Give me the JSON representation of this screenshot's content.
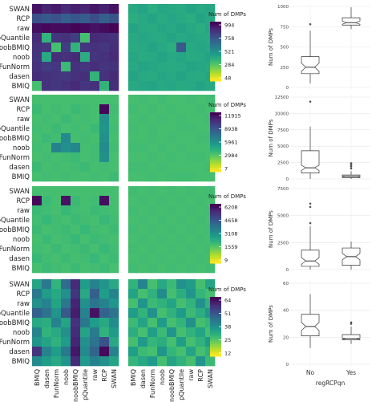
{
  "chart_data": {
    "type": "heatmap",
    "colorscale": [
      "#fde725",
      "#b5de2b",
      "#6ece58",
      "#35b779",
      "#1f9e89",
      "#26828e",
      "#31688e",
      "#3e4989",
      "#482878",
      "#440154"
    ],
    "methods_rows": [
      "SWAN",
      "RCP",
      "raw",
      "pQuantile",
      "noobBMIQ",
      "noob",
      "FunNorm",
      "dasen",
      "BMIQ"
    ],
    "methods_cols": [
      "BMIQ",
      "dasen",
      "FunNorm",
      "noob",
      "noobBMIQ",
      "pQuantile",
      "raw",
      "RCP",
      "SWAN"
    ],
    "legend_title": "Num of DMPs",
    "panels": [
      {
        "legend_ticks": [
          "994",
          "758",
          "521",
          "284",
          "48"
        ],
        "left": [
          [
            0.95,
            0.9,
            0.93,
            0.88,
            0.92,
            0.9,
            0.94,
            0.91,
            0.95
          ],
          [
            0.75,
            0.72,
            0.74,
            0.7,
            0.73,
            0.71,
            0.76,
            0.7,
            0.74
          ],
          [
            0.96,
            0.98,
            0.97,
            0.97,
            0.99,
            0.98,
            0.95,
            0.97,
            0.99
          ],
          [
            0.88,
            0.35,
            0.85,
            0.86,
            0.82,
            0.3,
            0.88,
            0.87,
            0.86
          ],
          [
            0.86,
            0.84,
            0.3,
            0.82,
            0.35,
            0.85,
            0.86,
            0.84,
            0.87
          ],
          [
            0.85,
            0.4,
            0.87,
            0.86,
            0.88,
            0.38,
            0.85,
            0.86,
            0.88
          ],
          [
            0.86,
            0.82,
            0.84,
            0.32,
            0.86,
            0.84,
            0.87,
            0.85,
            0.86
          ],
          [
            0.87,
            0.86,
            0.85,
            0.84,
            0.86,
            0.87,
            0.35,
            0.86,
            0.88
          ],
          [
            0.3,
            0.86,
            0.84,
            0.86,
            0.88,
            0.85,
            0.86,
            0.35,
            0.87
          ]
        ],
        "right": [
          [
            0.4,
            0.42,
            0.38,
            0.41,
            0.4,
            0.39,
            0.42,
            0.4,
            0.41
          ],
          [
            0.38,
            0.4,
            0.42,
            0.39,
            0.41,
            0.4,
            0.38,
            0.42,
            0.4
          ],
          [
            0.42,
            0.4,
            0.39,
            0.41,
            0.4,
            0.42,
            0.4,
            0.38,
            0.41
          ],
          [
            0.4,
            0.41,
            0.4,
            0.39,
            0.42,
            0.4,
            0.41,
            0.4,
            0.39
          ],
          [
            0.39,
            0.4,
            0.42,
            0.4,
            0.38,
            0.72,
            0.4,
            0.41,
            0.4
          ],
          [
            0.41,
            0.39,
            0.4,
            0.42,
            0.4,
            0.41,
            0.39,
            0.4,
            0.42
          ],
          [
            0.4,
            0.42,
            0.41,
            0.4,
            0.39,
            0.4,
            0.42,
            0.41,
            0.4
          ],
          [
            0.42,
            0.4,
            0.39,
            0.41,
            0.4,
            0.42,
            0.4,
            0.39,
            0.41
          ],
          [
            0.4,
            0.41,
            0.42,
            0.4,
            0.41,
            0.39,
            0.4,
            0.42,
            0.4
          ]
        ]
      },
      {
        "legend_ticks": [
          "11915",
          "8938",
          "5961",
          "2984",
          "7"
        ],
        "left": [
          [
            0.3,
            0.3,
            0.3,
            0.3,
            0.3,
            0.3,
            0.3,
            0.3,
            0.3
          ],
          [
            0.32,
            0.3,
            0.31,
            0.3,
            0.32,
            0.31,
            0.3,
            0.98,
            0.31
          ],
          [
            0.3,
            0.31,
            0.3,
            0.32,
            0.3,
            0.31,
            0.3,
            0.5,
            0.3
          ],
          [
            0.31,
            0.3,
            0.32,
            0.3,
            0.31,
            0.3,
            0.32,
            0.48,
            0.31
          ],
          [
            0.3,
            0.32,
            0.31,
            0.52,
            0.3,
            0.31,
            0.3,
            0.5,
            0.3
          ],
          [
            0.31,
            0.3,
            0.55,
            0.5,
            0.54,
            0.3,
            0.31,
            0.52,
            0.31
          ],
          [
            0.3,
            0.31,
            0.3,
            0.31,
            0.32,
            0.3,
            0.31,
            0.5,
            0.3
          ],
          [
            0.32,
            0.3,
            0.31,
            0.3,
            0.31,
            0.32,
            0.3,
            0.31,
            0.3
          ],
          [
            0.3,
            0.31,
            0.3,
            0.31,
            0.3,
            0.3,
            0.31,
            0.3,
            0.32
          ]
        ],
        "right": [
          [
            0.3,
            0.31,
            0.3,
            0.31,
            0.3,
            0.3,
            0.31,
            0.3,
            0.31
          ],
          [
            0.31,
            0.3,
            0.31,
            0.3,
            0.31,
            0.3,
            0.3,
            0.31,
            0.3
          ],
          [
            0.3,
            0.31,
            0.3,
            0.31,
            0.3,
            0.31,
            0.3,
            0.3,
            0.31
          ],
          [
            0.31,
            0.3,
            0.31,
            0.3,
            0.3,
            0.31,
            0.31,
            0.3,
            0.3
          ],
          [
            0.3,
            0.3,
            0.31,
            0.3,
            0.31,
            0.3,
            0.3,
            0.31,
            0.31
          ],
          [
            0.31,
            0.31,
            0.3,
            0.31,
            0.3,
            0.31,
            0.3,
            0.3,
            0.3
          ],
          [
            0.3,
            0.3,
            0.31,
            0.3,
            0.31,
            0.3,
            0.31,
            0.31,
            0.3
          ],
          [
            0.31,
            0.31,
            0.3,
            0.31,
            0.3,
            0.3,
            0.3,
            0.3,
            0.31
          ],
          [
            0.3,
            0.3,
            0.31,
            0.3,
            0.31,
            0.31,
            0.31,
            0.3,
            0.3
          ]
        ]
      },
      {
        "legend_ticks": [
          "6208",
          "4658",
          "3108",
          "1559",
          "9"
        ],
        "left": [
          [
            0.3,
            0.3,
            0.3,
            0.3,
            0.3,
            0.3,
            0.3,
            0.3,
            0.3
          ],
          [
            0.98,
            0.32,
            0.3,
            0.95,
            0.32,
            0.3,
            0.31,
            0.96,
            0.3
          ],
          [
            0.32,
            0.31,
            0.3,
            0.33,
            0.31,
            0.3,
            0.32,
            0.31,
            0.3
          ],
          [
            0.31,
            0.33,
            0.31,
            0.3,
            0.32,
            0.31,
            0.3,
            0.33,
            0.31
          ],
          [
            0.32,
            0.3,
            0.31,
            0.32,
            0.3,
            0.33,
            0.31,
            0.3,
            0.32
          ],
          [
            0.3,
            0.32,
            0.3,
            0.31,
            0.33,
            0.3,
            0.32,
            0.31,
            0.3
          ],
          [
            0.31,
            0.3,
            0.32,
            0.3,
            0.31,
            0.32,
            0.3,
            0.33,
            0.31
          ],
          [
            0.33,
            0.31,
            0.3,
            0.32,
            0.3,
            0.31,
            0.33,
            0.3,
            0.32
          ],
          [
            0.3,
            0.32,
            0.31,
            0.3,
            0.32,
            0.3,
            0.31,
            0.32,
            0.3
          ]
        ],
        "right": [
          [
            0.31,
            0.3,
            0.31,
            0.3,
            0.31,
            0.3,
            0.31,
            0.3,
            0.31
          ],
          [
            0.3,
            0.31,
            0.3,
            0.31,
            0.3,
            0.31,
            0.3,
            0.31,
            0.3
          ],
          [
            0.31,
            0.3,
            0.31,
            0.3,
            0.31,
            0.3,
            0.31,
            0.3,
            0.31
          ],
          [
            0.3,
            0.31,
            0.3,
            0.31,
            0.3,
            0.31,
            0.3,
            0.31,
            0.3
          ],
          [
            0.31,
            0.3,
            0.31,
            0.3,
            0.31,
            0.3,
            0.31,
            0.3,
            0.31
          ],
          [
            0.3,
            0.31,
            0.3,
            0.31,
            0.3,
            0.31,
            0.3,
            0.31,
            0.3
          ],
          [
            0.31,
            0.3,
            0.31,
            0.3,
            0.31,
            0.3,
            0.31,
            0.3,
            0.31
          ],
          [
            0.3,
            0.31,
            0.3,
            0.31,
            0.3,
            0.31,
            0.3,
            0.31,
            0.3
          ],
          [
            0.31,
            0.3,
            0.31,
            0.3,
            0.31,
            0.3,
            0.31,
            0.3,
            0.31
          ]
        ]
      },
      {
        "legend_ticks": [
          "64",
          "51",
          "38",
          "25",
          "12"
        ],
        "left": [
          [
            0.42,
            0.6,
            0.35,
            0.65,
            0.88,
            0.45,
            0.55,
            0.48,
            0.4
          ],
          [
            0.6,
            0.45,
            0.4,
            0.5,
            0.85,
            0.4,
            0.7,
            0.45,
            0.55
          ],
          [
            0.5,
            0.55,
            0.42,
            0.6,
            0.9,
            0.5,
            0.62,
            0.55,
            0.48
          ],
          [
            0.7,
            0.62,
            0.48,
            0.72,
            0.92,
            0.55,
            0.95,
            0.68,
            0.62
          ],
          [
            0.4,
            0.38,
            0.55,
            0.42,
            0.86,
            0.6,
            0.45,
            0.4,
            0.52
          ],
          [
            0.55,
            0.35,
            0.4,
            0.5,
            0.88,
            0.42,
            0.58,
            0.36,
            0.45
          ],
          [
            0.48,
            0.42,
            0.36,
            0.45,
            0.9,
            0.5,
            0.62,
            0.75,
            0.4
          ],
          [
            0.85,
            0.55,
            0.45,
            0.6,
            0.94,
            0.52,
            0.68,
            0.98,
            0.55
          ],
          [
            0.52,
            0.45,
            0.4,
            0.48,
            0.88,
            0.46,
            0.56,
            0.5,
            0.42
          ]
        ],
        "right": [
          [
            0.35,
            0.55,
            0.3,
            0.4,
            0.32,
            0.5,
            0.45,
            0.3,
            0.42
          ],
          [
            0.42,
            0.3,
            0.36,
            0.52,
            0.3,
            0.38,
            0.48,
            0.34,
            0.3
          ],
          [
            0.3,
            0.48,
            0.32,
            0.36,
            0.42,
            0.3,
            0.35,
            0.5,
            0.36
          ],
          [
            0.45,
            0.35,
            0.5,
            0.3,
            0.36,
            0.46,
            0.32,
            0.38,
            0.48
          ],
          [
            0.32,
            0.42,
            0.3,
            0.46,
            0.3,
            0.35,
            0.5,
            0.3,
            0.34
          ],
          [
            0.38,
            0.3,
            0.44,
            0.32,
            0.48,
            0.3,
            0.36,
            0.42,
            0.3
          ],
          [
            0.3,
            0.46,
            0.34,
            0.38,
            0.3,
            0.44,
            0.3,
            0.36,
            0.46
          ],
          [
            0.44,
            0.32,
            0.3,
            0.48,
            0.34,
            0.3,
            0.42,
            0.3,
            0.36
          ],
          [
            0.34,
            0.4,
            0.46,
            0.3,
            0.42,
            0.36,
            0.3,
            0.48,
            0.32
          ]
        ]
      }
    ],
    "boxplots": {
      "type": "box",
      "xlabel": "regRCPqn",
      "ylabel": "Num of DMPs",
      "categories": [
        "No",
        "Yes"
      ],
      "panels": [
        {
          "ylim": [
            0,
            1000
          ],
          "ticks": [
            0,
            250,
            500,
            750,
            1000
          ],
          "boxes": [
            {
              "min": 50,
              "q1": 170,
              "median": 250,
              "q3": 380,
              "max": 700,
              "notch": [
                200,
                300
              ],
              "outliers": [
                780
              ]
            },
            {
              "min": 720,
              "q1": 770,
              "median": 800,
              "q3": 860,
              "max": 990,
              "notch": [
                780,
                820
              ],
              "outliers": []
            }
          ]
        },
        {
          "ylim": [
            0,
            12500
          ],
          "ticks": [
            0,
            2500,
            5000,
            7500,
            10000,
            12500
          ],
          "boxes": [
            {
              "min": 0,
              "q1": 900,
              "median": 1700,
              "q3": 4300,
              "max": 8000,
              "notch": [
                1300,
                2100
              ],
              "outliers": [
                11800
              ]
            },
            {
              "min": 0,
              "q1": 200,
              "median": 400,
              "q3": 600,
              "max": 1200,
              "notch": [
                350,
                450
              ],
              "outliers": [
                1600,
                1900,
                2100,
                2300,
                2400
              ]
            }
          ]
        },
        {
          "ylim": [
            0,
            7500
          ],
          "ticks": [
            0,
            2500,
            5000,
            7500
          ],
          "boxes": [
            {
              "min": 0,
              "q1": 300,
              "median": 800,
              "q3": 1800,
              "max": 4000,
              "notch": [
                500,
                1100
              ],
              "outliers": [
                4300,
                5800,
                6100
              ]
            },
            {
              "min": 0,
              "q1": 400,
              "median": 1200,
              "q3": 2000,
              "max": 2600,
              "notch": [
                900,
                1500
              ],
              "outliers": []
            }
          ]
        },
        {
          "ylim": [
            0,
            60
          ],
          "ticks": [
            0,
            20,
            40,
            60
          ],
          "boxes": [
            {
              "min": 12,
              "q1": 21,
              "median": 28,
              "q3": 37,
              "max": 52,
              "notch": [
                25,
                31
              ],
              "outliers": []
            },
            {
              "min": 15,
              "q1": 18,
              "median": 19,
              "q3": 22,
              "max": 28,
              "notch": [
                18.5,
                19.5
              ],
              "outliers": [
                30,
                31
              ]
            }
          ]
        }
      ]
    }
  }
}
